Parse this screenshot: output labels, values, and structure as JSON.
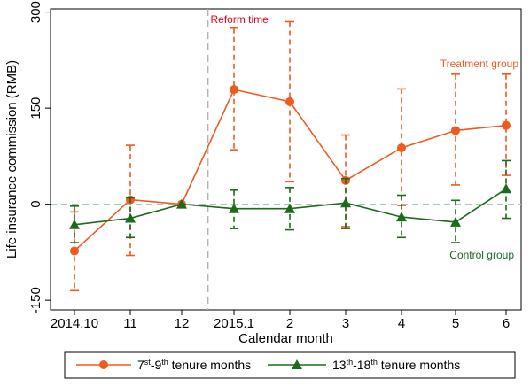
{
  "chart_data": {
    "type": "line",
    "title": "",
    "xlabel": "Calendar month",
    "ylabel": "Life insurance commission (RMB)",
    "categories": [
      "2014.10",
      "11",
      "12",
      "2015.1",
      "2",
      "3",
      "4",
      "5",
      "6"
    ],
    "yticks": [
      -150,
      0,
      150,
      300
    ],
    "ylim": [
      -165,
      305
    ],
    "grid": false,
    "reference_line": {
      "y": 0,
      "style": "dashed",
      "color": "#a9c9b8"
    },
    "reform_line": {
      "after_category_index": 2,
      "label": "Reform time",
      "color": "#e3001b"
    },
    "legend": {
      "placement": "bottom"
    },
    "series": [
      {
        "name": "7st-9th tenure months",
        "label_main": "7",
        "label_sup1": "st",
        "label_mid": "-9",
        "label_sup2": "th",
        "label_tail": " tenure months",
        "color": "#f05a1e",
        "marker": "circle",
        "annotation": "Treatment group",
        "values": [
          -73,
          7,
          0,
          179,
          160,
          37,
          88,
          115,
          123
        ],
        "ci_low": [
          -135,
          -80,
          0,
          85,
          35,
          -35,
          -2,
          30,
          45
        ],
        "ci_high": [
          -12,
          92,
          0,
          275,
          285,
          108,
          180,
          203,
          203
        ]
      },
      {
        "name": "13th-18th tenure months",
        "label_main": "13",
        "label_sup1": "th",
        "label_mid": "-18",
        "label_sup2": "th",
        "label_tail": " tenure months",
        "color": "#1a6b1a",
        "marker": "triangle",
        "annotation": "Control group",
        "values": [
          -32,
          -22,
          0,
          -7,
          -7,
          2,
          -20,
          -28,
          24
        ],
        "ci_low": [
          -60,
          -52,
          0,
          -38,
          -40,
          -38,
          -52,
          -60,
          -22
        ],
        "ci_high": [
          -3,
          10,
          0,
          22,
          26,
          40,
          14,
          6,
          68
        ]
      }
    ]
  }
}
